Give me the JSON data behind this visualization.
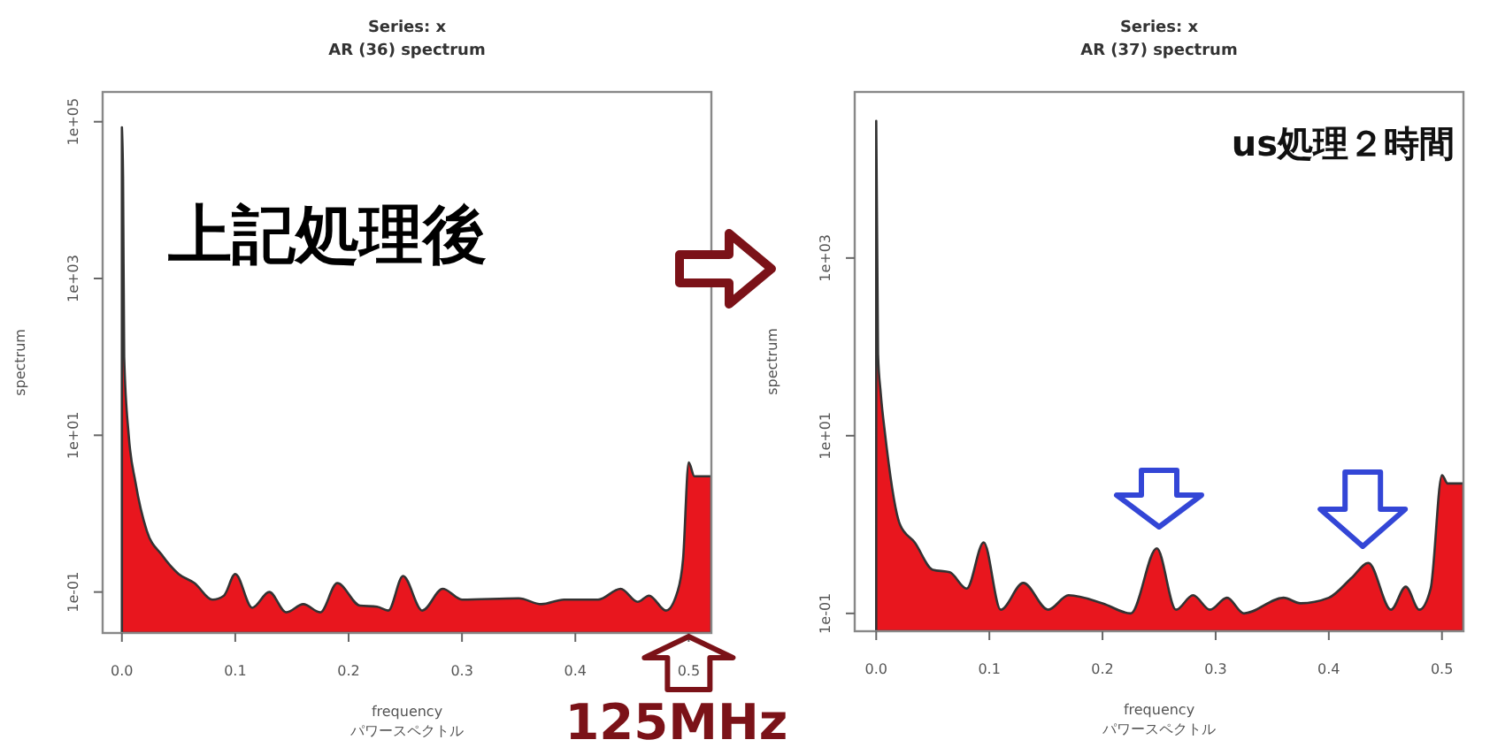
{
  "chart_data": [
    {
      "type": "area",
      "title": "Series: x",
      "subtitle": "AR (36) spectrum",
      "xlabel": "frequency\nパワースペクトル",
      "ylabel": "spectrum",
      "log": true,
      "xlim": [
        -0.017,
        0.52
      ],
      "ylim": [
        0.03,
        240000
      ],
      "xticks": [
        {
          "value": 0,
          "label": "0.0"
        },
        0.1,
        0.2,
        0.3,
        0.4,
        0.5
      ],
      "yticks": [
        {
          "value": 0.1,
          "label": "1e-01"
        },
        {
          "value": 10,
          "label": "1e+01"
        },
        {
          "value": 1000,
          "label": "1e+03"
        },
        {
          "value": 100000,
          "label": "1e+05"
        }
      ],
      "annotations": [
        "上記処理後",
        "125MHz"
      ],
      "series": [
        {
          "color": "#e8161e",
          "x": [
            0,
            0.001,
            0.002,
            0.006,
            0.012,
            0.022,
            0.035,
            0.05,
            0.064,
            0.08,
            0.09,
            0.1,
            0.115,
            0.13,
            0.145,
            0.16,
            0.175,
            0.19,
            0.21,
            0.225,
            0.235,
            0.248,
            0.265,
            0.283,
            0.3,
            0.35,
            0.37,
            0.39,
            0.42,
            0.44,
            0.455,
            0.465,
            0.48,
            0.49,
            0.495,
            0.5,
            0.505,
            0.52
          ],
          "values": [
            85000,
            20000,
            100,
            10,
            2.5,
            0.6,
            0.3,
            0.17,
            0.13,
            0.08,
            0.09,
            0.17,
            0.063,
            0.1,
            0.055,
            0.07,
            0.055,
            0.13,
            0.067,
            0.065,
            0.058,
            0.16,
            0.058,
            0.11,
            0.08,
            0.083,
            0.07,
            0.08,
            0.08,
            0.11,
            0.075,
            0.09,
            0.058,
            0.1,
            0.26,
            4.5,
            3,
            3
          ]
        }
      ]
    },
    {
      "type": "area",
      "title": "Series: x",
      "subtitle": "AR (37) spectrum",
      "xlabel": "frequency\nパワースペクトル",
      "ylabel": "spectrum",
      "log": true,
      "xlim": [
        -0.019,
        0.519
      ],
      "ylim": [
        0.063,
        74000
      ],
      "xticks": [
        {
          "value": 0,
          "label": "0.0"
        },
        0.1,
        0.2,
        0.3,
        0.4,
        0.5
      ],
      "yticks": [
        {
          "value": 0.1,
          "label": "1e-01"
        },
        {
          "value": 10,
          "label": "1e+01"
        },
        {
          "value": 1000,
          "label": "1e+03"
        }
      ],
      "annotations": [
        "us処理２時間"
      ],
      "series": [
        {
          "color": "#e8161e",
          "x": [
            0,
            0.0016,
            0.004,
            0.008,
            0.021,
            0.034,
            0.05,
            0.065,
            0.08,
            0.095,
            0.11,
            0.13,
            0.152,
            0.17,
            0.2,
            0.225,
            0.248,
            0.265,
            0.28,
            0.295,
            0.31,
            0.325,
            0.36,
            0.375,
            0.4,
            0.42,
            0.435,
            0.455,
            0.468,
            0.48,
            0.49,
            0.5,
            0.505,
            0.519
          ],
          "values": [
            35000,
            83,
            30,
            10,
            1,
            0.63,
            0.31,
            0.29,
            0.19,
            0.63,
            0.11,
            0.22,
            0.11,
            0.16,
            0.13,
            0.1,
            0.54,
            0.11,
            0.16,
            0.11,
            0.15,
            0.1,
            0.15,
            0.13,
            0.15,
            0.25,
            0.37,
            0.11,
            0.2,
            0.11,
            0.19,
            3.6,
            2.9,
            2.9
          ]
        }
      ]
    }
  ]
}
